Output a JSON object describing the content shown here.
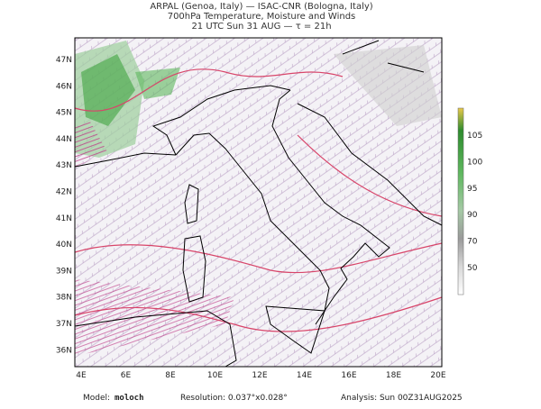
{
  "header": {
    "lines": [
      "ARPAL (Genoa, Italy)  —  ISAC-CNR (Bologna, Italy)",
      "700hPa Temperature, Moisture and Winds",
      "21 UTC Sun 31 AUG  —  τ = 21h"
    ]
  },
  "axes": {
    "lat_labels": [
      "47N",
      "46N",
      "45N",
      "44N",
      "43N",
      "42N",
      "41N",
      "40N",
      "39N",
      "38N",
      "37N",
      "36N"
    ],
    "lon_labels": [
      "4E",
      "6E",
      "8E",
      "10E",
      "12E",
      "14E",
      "16E",
      "18E",
      "20E"
    ]
  },
  "colorbar": {
    "labels": [
      "105",
      "100",
      "95",
      "90",
      "70",
      "50"
    ]
  },
  "footer": {
    "model_label": "Model:",
    "model": "moloch",
    "resolution": "Resolution: 0.037°x0.028°",
    "analysis": "Analysis: Sun 00Z31AUG2025"
  }
}
